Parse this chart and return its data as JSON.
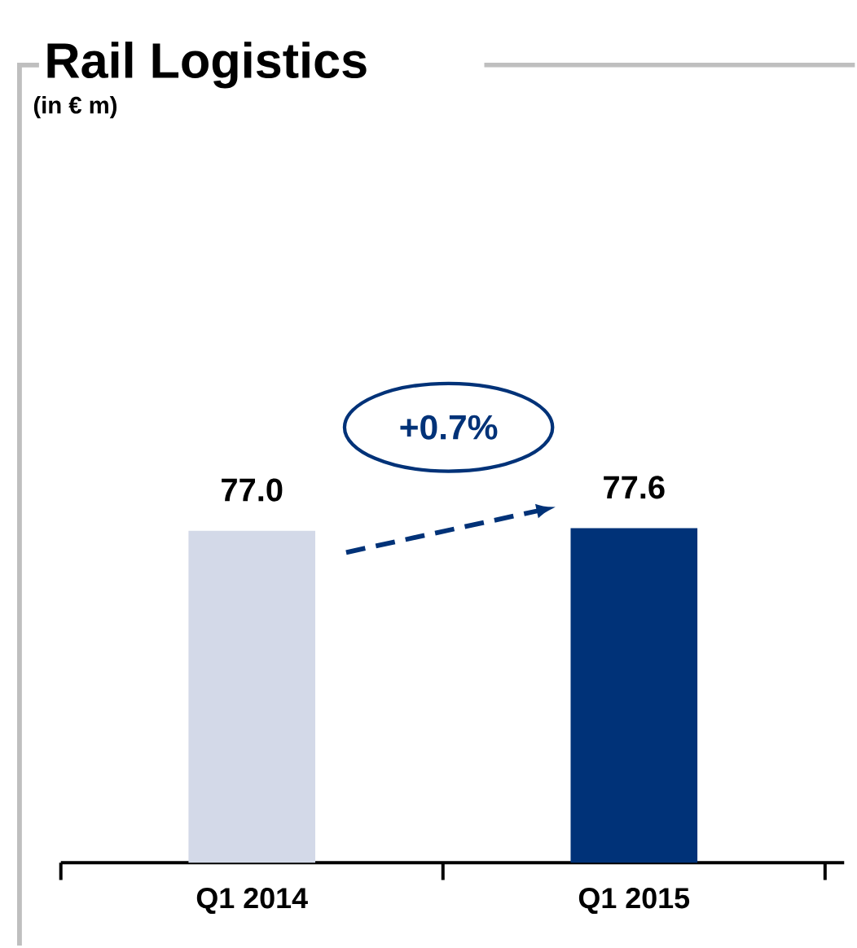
{
  "chart_data": {
    "type": "bar",
    "title": "Rail Logistics",
    "subtitle": "(in € m)",
    "categories": [
      "Q1 2014",
      "Q1 2015"
    ],
    "values": [
      77.0,
      77.6
    ],
    "colors": [
      "#d3d9e8",
      "#003278"
    ],
    "value_labels": [
      "77.0",
      "77.6"
    ],
    "annotations": [
      "+0.7%"
    ]
  }
}
